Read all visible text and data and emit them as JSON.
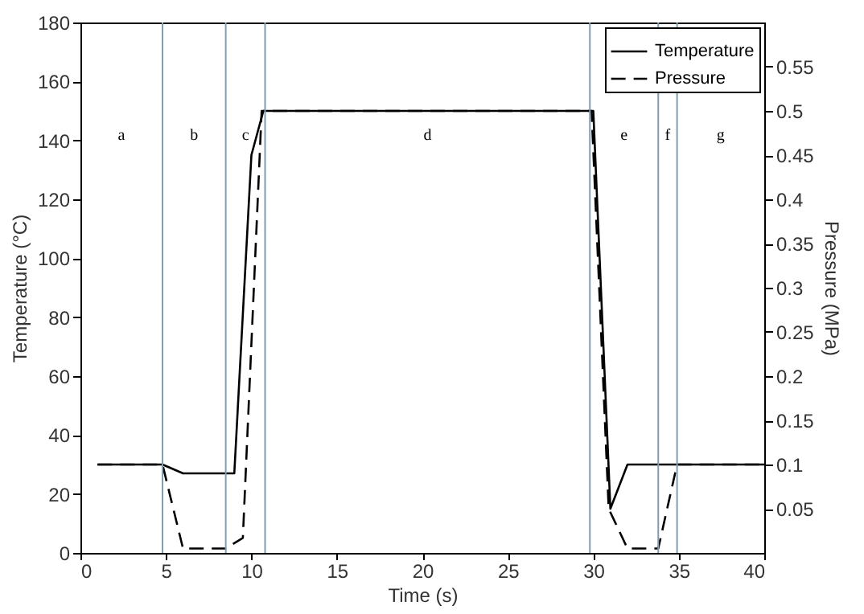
{
  "chart_data": {
    "type": "line",
    "xlabel": "Time (s)",
    "ylabel": "Temperature  (°C)",
    "y2label": "Pressure  (MPa)",
    "xlim": [
      0,
      40
    ],
    "xticks": [
      0,
      5,
      10,
      15,
      20,
      25,
      30,
      35,
      40
    ],
    "ylim": [
      0,
      180
    ],
    "yticks": [
      0,
      20,
      40,
      60,
      80,
      100,
      120,
      140,
      160,
      180
    ],
    "y2lim": [
      0,
      0.6
    ],
    "y2ticks": [
      0.05,
      0.1,
      0.15,
      0.2,
      0.25,
      0.3,
      0.35,
      0.4,
      0.45,
      0.5,
      0.55
    ],
    "series": [
      {
        "name": "Temperature",
        "color": "#000000",
        "line_style": "solid",
        "x": [
          1,
          4.8,
          6,
          9,
          10,
          10.7,
          30,
          31,
          32,
          40
        ],
        "values": [
          30,
          30,
          27,
          27,
          135,
          150,
          150,
          15,
          30,
          30
        ]
      },
      {
        "name": "Pressure",
        "color": "#000000",
        "line_style": "dashed",
        "axis": "y2",
        "x": [
          1,
          4.8,
          6,
          8.5,
          9.5,
          10.6,
          29.9,
          30.9,
          32,
          33.8,
          34.9,
          40
        ],
        "values": [
          0.1,
          0.1,
          0.005,
          0.005,
          0.017,
          0.5,
          0.5,
          0.05,
          0.005,
          0.005,
          0.1,
          0.1
        ]
      }
    ],
    "ref_lines": [
      {
        "axis": "x",
        "value": 4.8,
        "color": "#7f9db0"
      },
      {
        "axis": "x",
        "value": 8.5,
        "color": "#7f9db0"
      },
      {
        "axis": "x",
        "value": 10.8,
        "color": "#7f9db0"
      },
      {
        "axis": "x",
        "value": 29.8,
        "color": "#7f9db0"
      },
      {
        "axis": "x",
        "value": 33.8,
        "color": "#7f9db0"
      },
      {
        "axis": "x",
        "value": 34.9,
        "color": "#7f9db0"
      }
    ],
    "annotations": [
      "a",
      "b",
      "c",
      "d",
      "e",
      "f",
      "g"
    ],
    "legend": "top right",
    "grid": false
  }
}
